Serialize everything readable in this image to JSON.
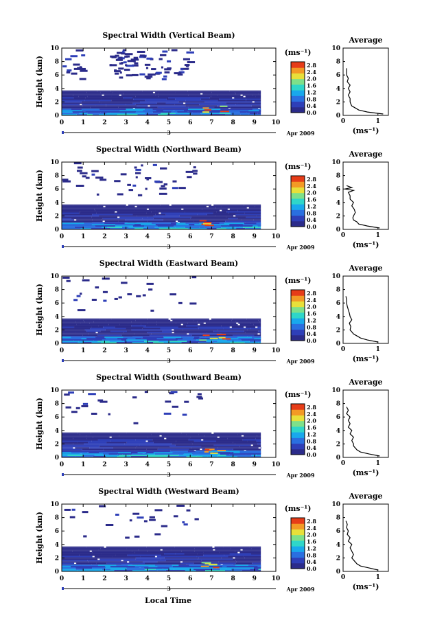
{
  "figure": {
    "xlabel": "Local Time",
    "date_label": "Apr 2009",
    "day_marker": "3",
    "colorbar_units": "(ms⁻¹)",
    "colorbar_ticks": [
      "0.0",
      "0.4",
      "0.8",
      "1.2",
      "1.6",
      "2.0",
      "2.4",
      "2.8"
    ],
    "x_ticks": [
      "0",
      "1",
      "2",
      "3",
      "4",
      "5",
      "6",
      "7",
      "8",
      "9",
      "10"
    ],
    "y_ticks": [
      "0",
      "2",
      "4",
      "6",
      "8",
      "10"
    ],
    "ylabel": "Height (km)",
    "avg_title": "Average",
    "avg_xlabel": "(ms⁻¹)",
    "avg_x_ticks": [
      "0",
      "1"
    ],
    "avg_y_ticks": [
      "0",
      "2",
      "4",
      "6",
      "8",
      "10"
    ]
  },
  "colors": {
    "scale": [
      "#2b2b8a",
      "#2e3fb8",
      "#2a6fe0",
      "#19a8ec",
      "#2fd6c9",
      "#7ee08a",
      "#e8e03a",
      "#f39a25",
      "#e63c18"
    ]
  },
  "chart_data": [
    {
      "type": "heatmap",
      "title": "Spectral Width (Vertical Beam)",
      "xlabel": "Local Time",
      "ylabel": "Height (km)",
      "xlim": [
        0,
        10
      ],
      "ylim": [
        0,
        10
      ],
      "colorbar": {
        "label": "(ms⁻¹)",
        "range": [
          0,
          2.8
        ]
      },
      "average_profile": {
        "title": "Average",
        "xlabel": "(ms⁻¹)",
        "xlim": [
          0,
          1.3
        ],
        "ylim": [
          0,
          10
        ],
        "height": [
          0.2,
          0.5,
          0.8,
          1.1,
          1.4,
          1.7,
          2.0,
          2.5,
          3.0,
          3.5,
          4.0,
          4.5,
          5.0,
          5.5,
          6.0,
          6.5,
          7.0
        ],
        "value": [
          1.15,
          0.7,
          0.45,
          0.35,
          0.25,
          0.22,
          0.2,
          0.2,
          0.15,
          0.2,
          0.15,
          0.2,
          0.12,
          0.15,
          0.1,
          0.1,
          0.1
        ]
      }
    },
    {
      "type": "heatmap",
      "title": "Spectral Width (Northward Beam)",
      "xlabel": "Local Time",
      "ylabel": "Height (km)",
      "xlim": [
        0,
        10
      ],
      "ylim": [
        0,
        10
      ],
      "colorbar": {
        "label": "(ms⁻¹)",
        "range": [
          0,
          2.8
        ]
      },
      "average_profile": {
        "title": "Average",
        "xlabel": "(ms⁻¹)",
        "xlim": [
          0,
          1.3
        ],
        "ylim": [
          0,
          10
        ],
        "height": [
          0.2,
          0.5,
          0.8,
          1.1,
          1.4,
          1.7,
          2.0,
          2.5,
          3.0,
          3.5,
          4.0,
          4.5,
          5.0,
          5.5,
          5.8,
          6.0,
          6.2,
          6.5
        ],
        "value": [
          1.05,
          0.7,
          0.45,
          0.4,
          0.3,
          0.28,
          0.3,
          0.35,
          0.32,
          0.25,
          0.3,
          0.2,
          0.2,
          0.15,
          0.3,
          0.05,
          0.25,
          0.1
        ]
      }
    },
    {
      "type": "heatmap",
      "title": "Spectral Width (Eastward Beam)",
      "xlabel": "Local Time",
      "ylabel": "Height (km)",
      "xlim": [
        0,
        10
      ],
      "ylim": [
        0,
        10
      ],
      "colorbar": {
        "label": "(ms⁻¹)",
        "range": [
          0,
          2.8
        ]
      },
      "average_profile": {
        "title": "Average",
        "xlabel": "(ms⁻¹)",
        "xlim": [
          0,
          1.3
        ],
        "ylim": [
          0,
          10
        ],
        "height": [
          0.2,
          0.5,
          0.8,
          1.1,
          1.4,
          1.7,
          2.0,
          2.5,
          3.0,
          3.5,
          4.0,
          4.5,
          5.0,
          5.5,
          6.0,
          6.5,
          7.0
        ],
        "value": [
          1.0,
          0.7,
          0.5,
          0.4,
          0.3,
          0.25,
          0.2,
          0.22,
          0.18,
          0.25,
          0.2,
          0.18,
          0.15,
          0.12,
          0.1,
          0.1,
          0.08
        ]
      }
    },
    {
      "type": "heatmap",
      "title": "Spectral Width (Southward Beam)",
      "xlabel": "Local Time",
      "ylabel": "Height (km)",
      "xlim": [
        0,
        10
      ],
      "ylim": [
        0,
        10
      ],
      "colorbar": {
        "label": "(ms⁻¹)",
        "range": [
          0,
          2.8
        ]
      },
      "average_profile": {
        "title": "Average",
        "xlabel": "(ms⁻¹)",
        "xlim": [
          0,
          1.3
        ],
        "ylim": [
          0,
          10
        ],
        "height": [
          0.2,
          0.5,
          0.8,
          1.1,
          1.4,
          1.7,
          2.0,
          2.5,
          3.0,
          3.5,
          4.0,
          4.5,
          5.0,
          5.5,
          6.0,
          6.5,
          7.0,
          7.5
        ],
        "value": [
          1.05,
          0.75,
          0.5,
          0.4,
          0.35,
          0.3,
          0.3,
          0.25,
          0.3,
          0.2,
          0.25,
          0.15,
          0.2,
          0.15,
          0.2,
          0.1,
          0.15,
          0.1
        ]
      }
    },
    {
      "type": "heatmap",
      "title": "Spectral Width (Westward Beam)",
      "xlabel": "Local Time",
      "ylabel": "Height (km)",
      "xlim": [
        0,
        10
      ],
      "ylim": [
        0,
        10
      ],
      "colorbar": {
        "label": "(ms⁻¹)",
        "range": [
          0,
          2.8
        ]
      },
      "average_profile": {
        "title": "Average",
        "xlabel": "(ms⁻¹)",
        "xlim": [
          0,
          1.3
        ],
        "ylim": [
          0,
          10
        ],
        "height": [
          0.2,
          0.5,
          0.8,
          1.1,
          1.4,
          1.7,
          2.0,
          2.5,
          3.0,
          3.5,
          4.0,
          4.5,
          5.0,
          5.5,
          6.0,
          6.5,
          7.0,
          7.5
        ],
        "value": [
          1.0,
          0.75,
          0.5,
          0.4,
          0.35,
          0.3,
          0.25,
          0.3,
          0.25,
          0.2,
          0.25,
          0.15,
          0.2,
          0.12,
          0.15,
          0.1,
          0.12,
          0.08
        ]
      }
    }
  ]
}
